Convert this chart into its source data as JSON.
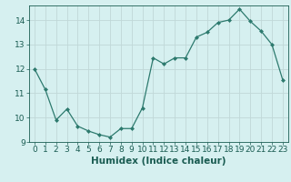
{
  "x": [
    0,
    1,
    2,
    3,
    4,
    5,
    6,
    7,
    8,
    9,
    10,
    11,
    12,
    13,
    14,
    15,
    16,
    17,
    18,
    19,
    20,
    21,
    22,
    23
  ],
  "y": [
    12.0,
    11.15,
    9.9,
    10.35,
    9.65,
    9.45,
    9.3,
    9.2,
    9.55,
    9.55,
    10.4,
    12.45,
    12.2,
    12.45,
    12.45,
    13.3,
    13.5,
    13.9,
    14.0,
    14.45,
    13.95,
    13.55,
    13.0,
    11.55
  ],
  "line_color": "#2d7a6e",
  "marker": "D",
  "marker_size": 2.0,
  "bg_color": "#d6f0f0",
  "grid_color": "#c0d8d8",
  "xlabel": "Humidex (Indice chaleur)",
  "xlim": [
    -0.5,
    23.5
  ],
  "ylim": [
    9.0,
    14.6
  ],
  "yticks": [
    9,
    10,
    11,
    12,
    13,
    14
  ],
  "xticks": [
    0,
    1,
    2,
    3,
    4,
    5,
    6,
    7,
    8,
    9,
    10,
    11,
    12,
    13,
    14,
    15,
    16,
    17,
    18,
    19,
    20,
    21,
    22,
    23
  ],
  "tick_fontsize": 6.5,
  "xlabel_fontsize": 7.5,
  "label_color": "#1a5c52"
}
